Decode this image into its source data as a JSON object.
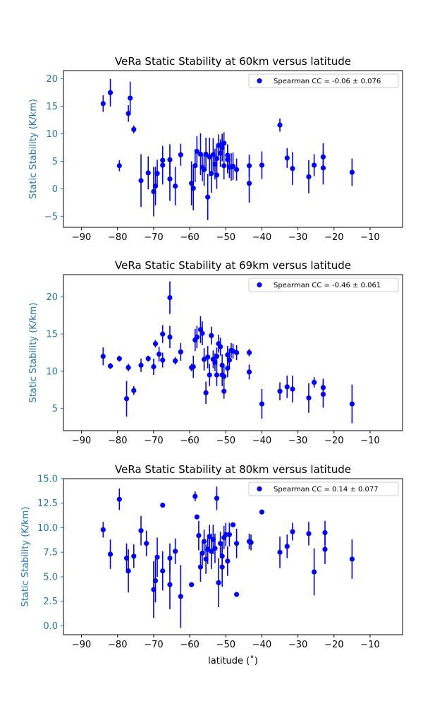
{
  "colors": {
    "points": "#0000ff",
    "axis_label": "#1f77b4",
    "frame": "#000000",
    "legend_frame": "#cccccc"
  },
  "chart_data": [
    {
      "type": "scatter",
      "title": "VeRa Static Stability at 60km versus latitude",
      "xlabel": "",
      "ylabel": "Static Stability (K/km)",
      "legend": "Spearman CC = -0.06 ±  0.076",
      "legend_position": "top-right",
      "grid": false,
      "xlim": [
        -95,
        -1
      ],
      "ylim": [
        -7,
        21.5
      ],
      "xticks": [
        -90,
        -80,
        -70,
        -60,
        -50,
        -40,
        -30,
        -20,
        -10
      ],
      "xtick_labels": [
        "−90",
        "−80",
        "−70",
        "−60",
        "−50",
        "−40",
        "−30",
        "−20",
        "−10"
      ],
      "yticks": [
        -5,
        0,
        5,
        10,
        15,
        20
      ],
      "ytick_labels": [
        "−5",
        "0",
        "5",
        "10",
        "15",
        "20"
      ],
      "points": [
        [
          -84,
          15.5,
          1.5
        ],
        [
          -82,
          17.5,
          2.5
        ],
        [
          -79.5,
          4.2,
          1.0
        ],
        [
          -77,
          13.7,
          1.5
        ],
        [
          -76.5,
          16.5,
          3.0
        ],
        [
          -75.5,
          10.8,
          0.7
        ],
        [
          -73.5,
          1.5,
          4.8
        ],
        [
          -71.5,
          2.9,
          3.0
        ],
        [
          -70,
          -0.5,
          4.5
        ],
        [
          -69.5,
          0.5,
          3.5
        ],
        [
          -69,
          2.8,
          2.5
        ],
        [
          -67.5,
          4.3,
          3.5
        ],
        [
          -67.5,
          5.2,
          1.5
        ],
        [
          -65.5,
          1.8,
          4.0
        ],
        [
          -65.5,
          5.3,
          2.8
        ],
        [
          -64,
          0.5,
          3.5
        ],
        [
          -62.5,
          6.2,
          2.0
        ],
        [
          -59.5,
          1.0,
          4.0
        ],
        [
          -59,
          0.1,
          4.0
        ],
        [
          -58.5,
          4.2,
          3.0
        ],
        [
          -58,
          6.8,
          2.8
        ],
        [
          -57,
          6.3,
          3.8
        ],
        [
          -56.5,
          3.9,
          2.5
        ],
        [
          -56,
          3.5,
          3.0
        ],
        [
          -55.5,
          6.3,
          3.0
        ],
        [
          -55,
          -1.5,
          4.2
        ],
        [
          -54.5,
          5.8,
          3.5
        ],
        [
          -54,
          2.8,
          3.5
        ],
        [
          -53.5,
          6.2,
          3.0
        ],
        [
          -53,
          4.5,
          2.8
        ],
        [
          -52.5,
          5.5,
          2.5
        ],
        [
          -52.5,
          2.5,
          2.5
        ],
        [
          -52,
          7.9,
          2.0
        ],
        [
          -51.5,
          6.5,
          2.5
        ],
        [
          -51,
          7.5,
          2.5
        ],
        [
          -51,
          8.1,
          1.5
        ],
        [
          -50.5,
          8.3,
          2.0
        ],
        [
          -50.5,
          4.2,
          2.5
        ],
        [
          -49.5,
          5.3,
          2.5
        ],
        [
          -49.5,
          6.1,
          2.0
        ],
        [
          -49,
          4.0,
          2.0
        ],
        [
          -48.5,
          4.0,
          2.5
        ],
        [
          -48,
          4.1,
          2.5
        ],
        [
          -47,
          3.5,
          2.0
        ],
        [
          -43.5,
          4.2,
          2.0
        ],
        [
          -43.5,
          1.0,
          3.5
        ],
        [
          -40,
          4.3,
          2.5
        ],
        [
          -35,
          11.6,
          1.2
        ],
        [
          -33,
          5.6,
          1.8
        ],
        [
          -31.5,
          3.7,
          3.0
        ],
        [
          -27,
          2.2,
          3.0
        ],
        [
          -25.5,
          4.3,
          2.0
        ],
        [
          -23,
          3.8,
          3.0
        ],
        [
          -23,
          5.8,
          2.5
        ],
        [
          -15,
          3.0,
          2.5
        ]
      ]
    },
    {
      "type": "scatter",
      "title": "VeRa Static Stability at 69km versus latitude",
      "xlabel": "",
      "ylabel": "Static Stability (K/km)",
      "legend": "Spearman CC = -0.46 ±  0.061",
      "legend_position": "top-right",
      "grid": false,
      "xlim": [
        -95,
        -1
      ],
      "ylim": [
        2,
        23
      ],
      "xticks": [
        -90,
        -80,
        -70,
        -60,
        -50,
        -40,
        -30,
        -20,
        -10
      ],
      "xtick_labels": [
        "−90",
        "−80",
        "−70",
        "−60",
        "−50",
        "−40",
        "−30",
        "−20",
        "−10"
      ],
      "yticks": [
        5,
        10,
        15,
        20
      ],
      "ytick_labels": [
        "5",
        "10",
        "15",
        "20"
      ],
      "points": [
        [
          -84,
          12.0,
          1.2
        ],
        [
          -82,
          10.7,
          0.4
        ],
        [
          -79.5,
          11.7,
          0.4
        ],
        [
          -77.5,
          6.3,
          2.4
        ],
        [
          -77,
          10.5,
          0.5
        ],
        [
          -75.5,
          7.4,
          0.6
        ],
        [
          -73.5,
          10.8,
          0.9
        ],
        [
          -71.5,
          11.7,
          0.4
        ],
        [
          -70,
          10.6,
          1.1
        ],
        [
          -69.5,
          13.7,
          0.5
        ],
        [
          -68.5,
          12.3,
          1.0
        ],
        [
          -67.5,
          15.0,
          1.2
        ],
        [
          -67.5,
          11.5,
          1.0
        ],
        [
          -65.5,
          14.6,
          1.5
        ],
        [
          -65.5,
          19.9,
          2.2
        ],
        [
          -64,
          11.4,
          0.5
        ],
        [
          -62.5,
          12.6,
          1.2
        ],
        [
          -59.5,
          10.5,
          0.5
        ],
        [
          -59,
          10.6,
          1.5
        ],
        [
          -58.5,
          14.2,
          1.5
        ],
        [
          -58,
          14.6,
          1.5
        ],
        [
          -57,
          15.6,
          1.8
        ],
        [
          -56.5,
          15.1,
          1.6
        ],
        [
          -56,
          11.6,
          1.5
        ],
        [
          -55.5,
          7.1,
          1.5
        ],
        [
          -55,
          11.9,
          1.5
        ],
        [
          -54.5,
          9.5,
          1.5
        ],
        [
          -54,
          14.8,
          1.2
        ],
        [
          -53.5,
          11.6,
          1.2
        ],
        [
          -53,
          11.2,
          1.2
        ],
        [
          -52.5,
          9.5,
          1.5
        ],
        [
          -52.5,
          12.0,
          1.2
        ],
        [
          -52,
          13.7,
          1.2
        ],
        [
          -51.5,
          13.3,
          1.2
        ],
        [
          -51,
          9.5,
          1.5
        ],
        [
          -51,
          10.8,
          1.5
        ],
        [
          -50.5,
          7.3,
          1.0
        ],
        [
          -50.5,
          9.3,
          1.5
        ],
        [
          -49.5,
          10.4,
          1.2
        ],
        [
          -49.5,
          12.2,
          1.2
        ],
        [
          -49,
          11.5,
          1.2
        ],
        [
          -48.5,
          12.8,
          1.0
        ],
        [
          -48,
          12.7,
          1.0
        ],
        [
          -47,
          12.5,
          1.0
        ],
        [
          -43.5,
          12.5,
          0.5
        ],
        [
          -43.5,
          9.9,
          1.0
        ],
        [
          -40,
          5.6,
          2.0
        ],
        [
          -35,
          7.3,
          1.2
        ],
        [
          -33,
          7.9,
          1.5
        ],
        [
          -31.5,
          7.6,
          1.8
        ],
        [
          -27,
          6.4,
          2.0
        ],
        [
          -25.5,
          8.5,
          0.7
        ],
        [
          -23,
          7.8,
          1.2
        ],
        [
          -23,
          6.9,
          1.8
        ],
        [
          -15,
          5.6,
          2.6
        ]
      ]
    },
    {
      "type": "scatter",
      "title": "VeRa Static Stability at 80km versus latitude",
      "xlabel": "latitude (˚)",
      "ylabel": "Static Stability (K/km)",
      "legend": "Spearman CC =  0.14 ±  0.077",
      "legend_position": "top-right",
      "grid": false,
      "xlim": [
        -95,
        -1
      ],
      "ylim": [
        -0.9,
        15
      ],
      "xticks": [
        -90,
        -80,
        -70,
        -60,
        -50,
        -40,
        -30,
        -20,
        -10
      ],
      "xtick_labels": [
        "−90",
        "−80",
        "−70",
        "−60",
        "−50",
        "−40",
        "−30",
        "−20",
        "−10"
      ],
      "yticks": [
        0.0,
        2.5,
        5.0,
        7.5,
        10.0,
        12.5,
        15.0
      ],
      "ytick_labels": [
        "0.0",
        "2.5",
        "5.0",
        "7.5",
        "10.0",
        "12.5",
        "15.0"
      ],
      "points": [
        [
          -84,
          9.8,
          0.8
        ],
        [
          -82,
          7.3,
          1.5
        ],
        [
          -79.5,
          12.9,
          1.1
        ],
        [
          -77.5,
          6.9,
          1.5
        ],
        [
          -77,
          5.6,
          2.2
        ],
        [
          -75.5,
          7.1,
          1.2
        ],
        [
          -73.5,
          9.7,
          1.5
        ],
        [
          -72,
          8.4,
          1.3
        ],
        [
          -70,
          3.7,
          2.9
        ],
        [
          -69.5,
          4.6,
          2.2
        ],
        [
          -69,
          7.0,
          2.0
        ],
        [
          -67.5,
          12.3,
          0.1
        ],
        [
          -67.5,
          5.6,
          2.0
        ],
        [
          -65.5,
          6.9,
          1.5
        ],
        [
          -65.5,
          4.2,
          2.5
        ],
        [
          -64,
          7.6,
          1.3
        ],
        [
          -62.5,
          3.0,
          3.2
        ],
        [
          -59.5,
          4.2,
          0.1
        ],
        [
          -58.5,
          13.2,
          0.5
        ],
        [
          -58,
          11.1,
          0.1
        ],
        [
          -57.5,
          9.2,
          1.5
        ],
        [
          -57,
          6.0,
          1.5
        ],
        [
          -56.5,
          7.4,
          1.2
        ],
        [
          -56,
          8.6,
          1.2
        ],
        [
          -55.5,
          6.8,
          1.5
        ],
        [
          -55,
          7.8,
          1.5
        ],
        [
          -54.5,
          9.1,
          1.2
        ],
        [
          -54,
          7.6,
          1.8
        ],
        [
          -53.5,
          8.8,
          1.5
        ],
        [
          -53,
          7.9,
          1.5
        ],
        [
          -52.5,
          13.0,
          1.2
        ],
        [
          -52,
          4.4,
          2.5
        ],
        [
          -51.5,
          8.4,
          1.2
        ],
        [
          -51,
          6.0,
          2.0
        ],
        [
          -51,
          7.1,
          1.5
        ],
        [
          -50.5,
          9.0,
          1.2
        ],
        [
          -50,
          9.3,
          1.2
        ],
        [
          -49.5,
          6.6,
          1.5
        ],
        [
          -49,
          9.3,
          1.2
        ],
        [
          -48,
          10.3,
          0.1
        ],
        [
          -47,
          3.2,
          0.1
        ],
        [
          -47,
          8.4,
          1.5
        ],
        [
          -43.5,
          8.6,
          0.8
        ],
        [
          -43,
          8.5,
          0.8
        ],
        [
          -40,
          11.6,
          0.1
        ],
        [
          -35,
          7.5,
          1.6
        ],
        [
          -33,
          8.1,
          1.2
        ],
        [
          -31.5,
          9.6,
          0.9
        ],
        [
          -27,
          9.4,
          1.2
        ],
        [
          -25.5,
          5.5,
          2.4
        ],
        [
          -22.5,
          7.8,
          1.5
        ],
        [
          -22.5,
          9.5,
          1.2
        ],
        [
          -15,
          6.8,
          2.0
        ]
      ]
    }
  ]
}
